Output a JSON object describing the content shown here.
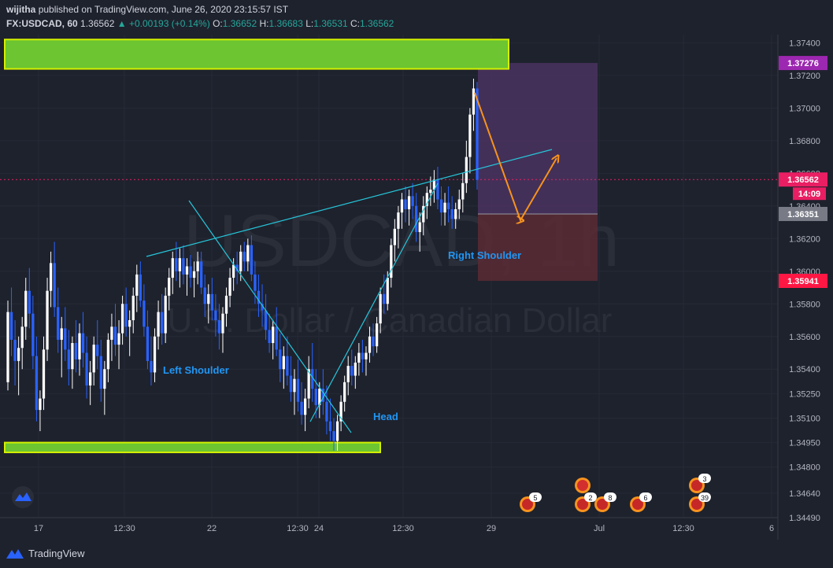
{
  "header": {
    "publisher": "wijitha",
    "published_text": "published on TradingView.com, June 26, 2020 23:15:57 IST",
    "symbol": "FX:USDCAD, 60",
    "last": "1.36562",
    "change": "▲ +0.00193 (+0.14%)",
    "o_label": "O:",
    "o": "1.36652",
    "h_label": "H:",
    "h": "1.36683",
    "l_label": "L:",
    "l": "1.36531",
    "c_label": "C:",
    "c": "1.36562"
  },
  "watermark": {
    "symbol": "USDCAD, 1h",
    "name": "U.S. Dollar / Canadian Dollar"
  },
  "annotations": {
    "left_shoulder": "Left Shoulder",
    "head": "Head",
    "right_shoulder": "Right Shoulder"
  },
  "price_labels": {
    "target_upper": "1.37276",
    "current": "1.36562",
    "countdown": "14:09",
    "entry": "1.36351",
    "stop": "1.35941"
  },
  "event_badges": [
    "5",
    "2",
    "8",
    "6",
    "3",
    "39"
  ],
  "footer": {
    "brand": "TradingView"
  },
  "colors": {
    "background": "#1e222d",
    "up_candle": "#ffffff",
    "down_candle": "#2962ff",
    "zone_fill": "#6cc531",
    "zone_border": "#d4f000",
    "trendline": "#26c6da",
    "arrow": "#f7931e",
    "label_text": "#2196f3",
    "target_box": "#4a3360",
    "stop_box": "#5b2a35",
    "target_label": "#9c27b0",
    "current_label": "#e91e63",
    "entry_label": "#787b86",
    "stop_label": "#ff1744"
  },
  "chart_data": {
    "type": "candlestick",
    "symbol": "FX:USDCAD",
    "interval": "60",
    "y_ticks": [
      "1.37400",
      "1.37200",
      "1.37000",
      "1.36800",
      "1.36600",
      "1.36400",
      "1.36200",
      "1.36000",
      "1.35800",
      "1.35600",
      "1.35400",
      "1.35250",
      "1.35100",
      "1.34950",
      "1.34800",
      "1.34640",
      "1.34490"
    ],
    "x_ticks": [
      "17",
      "12:30",
      "22",
      "12:30",
      "24",
      "12:30",
      "29",
      "Jul",
      "12:30",
      "6"
    ],
    "ylim": [
      1.3449,
      1.3745
    ],
    "supply_zone": [
      1.3724,
      1.3742
    ],
    "demand_zone": [
      1.3489,
      1.3495
    ],
    "neckline": [
      {
        "x": "19 12:00",
        "y": 1.3612
      },
      {
        "x": "26 18:00",
        "y": 1.3678
      }
    ],
    "head_line_down": [
      {
        "x": "19 00:00",
        "y": 1.3646
      },
      {
        "x": "23 20:00",
        "y": 1.3508
      }
    ],
    "head_line_up": [
      {
        "x": "23 14:00",
        "y": 1.35
      },
      {
        "x": "25 17:00",
        "y": 1.3652
      }
    ],
    "projection_path": [
      1.3718,
      1.3635,
      1.3672
    ],
    "position": {
      "target": 1.37276,
      "entry": 1.36351,
      "stop": 1.35941
    },
    "candles": [
      [
        1.3532,
        1.3582,
        1.3527,
        1.3575
      ],
      [
        1.3575,
        1.359,
        1.3548,
        1.3558
      ],
      [
        1.3558,
        1.357,
        1.353,
        1.3545
      ],
      [
        1.3545,
        1.356,
        1.3524,
        1.3553
      ],
      [
        1.3553,
        1.3572,
        1.354,
        1.3566
      ],
      [
        1.3566,
        1.3596,
        1.3558,
        1.3588
      ],
      [
        1.3588,
        1.3602,
        1.3565,
        1.3574
      ],
      [
        1.3574,
        1.3585,
        1.354,
        1.3548
      ],
      [
        1.3548,
        1.356,
        1.3508,
        1.3515
      ],
      [
        1.3515,
        1.3527,
        1.3502,
        1.3522
      ],
      [
        1.3522,
        1.356,
        1.3515,
        1.3552
      ],
      [
        1.3552,
        1.3596,
        1.3545,
        1.3588
      ],
      [
        1.3588,
        1.3612,
        1.3578,
        1.3605
      ],
      [
        1.3605,
        1.3618,
        1.3572,
        1.3578
      ],
      [
        1.3578,
        1.359,
        1.355,
        1.3558
      ],
      [
        1.3558,
        1.3572,
        1.3535,
        1.3565
      ],
      [
        1.3565,
        1.3578,
        1.3545,
        1.3552
      ],
      [
        1.3552,
        1.3564,
        1.353,
        1.354
      ],
      [
        1.354,
        1.356,
        1.3528,
        1.3556
      ],
      [
        1.3556,
        1.357,
        1.3538,
        1.3546
      ],
      [
        1.3546,
        1.3568,
        1.3536,
        1.3562
      ],
      [
        1.3562,
        1.3575,
        1.3541,
        1.355
      ],
      [
        1.355,
        1.356,
        1.3522,
        1.353
      ],
      [
        1.353,
        1.3545,
        1.3518,
        1.3538
      ],
      [
        1.3538,
        1.356,
        1.353,
        1.3555
      ],
      [
        1.3555,
        1.357,
        1.354,
        1.3548
      ],
      [
        1.3548,
        1.3558,
        1.352,
        1.3528
      ],
      [
        1.3528,
        1.3545,
        1.3512,
        1.354
      ],
      [
        1.354,
        1.3562,
        1.3532,
        1.3558
      ],
      [
        1.3558,
        1.3574,
        1.3545,
        1.3566
      ],
      [
        1.3566,
        1.358,
        1.3548,
        1.3555
      ],
      [
        1.3555,
        1.357,
        1.354,
        1.3562
      ],
      [
        1.3562,
        1.3585,
        1.3555,
        1.358
      ],
      [
        1.358,
        1.359,
        1.356,
        1.3566
      ],
      [
        1.3566,
        1.3576,
        1.3548,
        1.357
      ],
      [
        1.357,
        1.359,
        1.3562,
        1.3585
      ],
      [
        1.3585,
        1.3604,
        1.3575,
        1.3598
      ],
      [
        1.3598,
        1.3606,
        1.3578,
        1.3582
      ],
      [
        1.3582,
        1.3592,
        1.356,
        1.3566
      ],
      [
        1.3566,
        1.3576,
        1.354,
        1.3545
      ],
      [
        1.3545,
        1.356,
        1.353,
        1.3538
      ],
      [
        1.3538,
        1.3565,
        1.3532,
        1.356
      ],
      [
        1.356,
        1.3582,
        1.3552,
        1.3575
      ],
      [
        1.3575,
        1.3586,
        1.3555,
        1.3562
      ],
      [
        1.3562,
        1.359,
        1.3556,
        1.3585
      ],
      [
        1.3585,
        1.3602,
        1.3576,
        1.3596
      ],
      [
        1.3596,
        1.3612,
        1.3586,
        1.3608
      ],
      [
        1.3608,
        1.3618,
        1.3594,
        1.36
      ],
      [
        1.36,
        1.3614,
        1.359,
        1.3608
      ],
      [
        1.3608,
        1.3616,
        1.3592,
        1.3598
      ],
      [
        1.3598,
        1.3608,
        1.3585,
        1.3603
      ],
      [
        1.3603,
        1.361,
        1.359,
        1.3596
      ],
      [
        1.3596,
        1.3606,
        1.3584,
        1.36
      ],
      [
        1.36,
        1.3612,
        1.3592,
        1.3606
      ],
      [
        1.3606,
        1.3612,
        1.3586,
        1.359
      ],
      [
        1.359,
        1.3598,
        1.3572,
        1.358
      ],
      [
        1.358,
        1.3592,
        1.3568,
        1.3586
      ],
      [
        1.3586,
        1.3596,
        1.357,
        1.3576
      ],
      [
        1.3576,
        1.3586,
        1.356,
        1.357
      ],
      [
        1.357,
        1.358,
        1.3552,
        1.3562
      ],
      [
        1.3562,
        1.3578,
        1.355,
        1.3574
      ],
      [
        1.3574,
        1.359,
        1.3566,
        1.3585
      ],
      [
        1.3585,
        1.3602,
        1.3578,
        1.3596
      ],
      [
        1.3596,
        1.3608,
        1.3588,
        1.3604
      ],
      [
        1.3604,
        1.3612,
        1.3592,
        1.36
      ],
      [
        1.36,
        1.3616,
        1.3594,
        1.3612
      ],
      [
        1.3612,
        1.3618,
        1.36,
        1.3606
      ],
      [
        1.3606,
        1.362,
        1.36,
        1.3616
      ],
      [
        1.3616,
        1.3622,
        1.3594,
        1.3598
      ],
      [
        1.3598,
        1.3606,
        1.358,
        1.3588
      ],
      [
        1.3588,
        1.3598,
        1.3572,
        1.358
      ],
      [
        1.358,
        1.3592,
        1.3566,
        1.3576
      ],
      [
        1.3576,
        1.3586,
        1.3558,
        1.3564
      ],
      [
        1.3564,
        1.3574,
        1.355,
        1.3556
      ],
      [
        1.3556,
        1.357,
        1.3546,
        1.3566
      ],
      [
        1.3566,
        1.3578,
        1.3548,
        1.3552
      ],
      [
        1.3552,
        1.3562,
        1.3532,
        1.354
      ],
      [
        1.354,
        1.3554,
        1.3528,
        1.3548
      ],
      [
        1.3548,
        1.356,
        1.353,
        1.3536
      ],
      [
        1.3536,
        1.3548,
        1.352,
        1.3526
      ],
      [
        1.3526,
        1.354,
        1.3512,
        1.3534
      ],
      [
        1.3534,
        1.3546,
        1.3514,
        1.352
      ],
      [
        1.352,
        1.3532,
        1.3506,
        1.3512
      ],
      [
        1.3512,
        1.3528,
        1.3502,
        1.3522
      ],
      [
        1.3522,
        1.3548,
        1.3516,
        1.354
      ],
      [
        1.354,
        1.3556,
        1.352,
        1.3528
      ],
      [
        1.3528,
        1.354,
        1.351,
        1.3518
      ],
      [
        1.3518,
        1.3532,
        1.351,
        1.3528
      ],
      [
        1.3528,
        1.354,
        1.3512,
        1.352
      ],
      [
        1.352,
        1.353,
        1.35,
        1.3508
      ],
      [
        1.3508,
        1.3522,
        1.3496,
        1.3502
      ],
      [
        1.3502,
        1.351,
        1.349,
        1.3496
      ],
      [
        1.3496,
        1.3512,
        1.349,
        1.3508
      ],
      [
        1.3508,
        1.3524,
        1.3502,
        1.352
      ],
      [
        1.352,
        1.3536,
        1.3514,
        1.3532
      ],
      [
        1.3532,
        1.3548,
        1.3524,
        1.3542
      ],
      [
        1.3542,
        1.3552,
        1.353,
        1.3536
      ],
      [
        1.3536,
        1.3548,
        1.3528,
        1.3544
      ],
      [
        1.3544,
        1.3556,
        1.3536,
        1.355
      ],
      [
        1.355,
        1.3558,
        1.3538,
        1.3546
      ],
      [
        1.3546,
        1.3554,
        1.3536,
        1.355
      ],
      [
        1.355,
        1.3566,
        1.3544,
        1.356
      ],
      [
        1.356,
        1.3568,
        1.3548,
        1.3554
      ],
      [
        1.3554,
        1.3572,
        1.355,
        1.3568
      ],
      [
        1.3568,
        1.359,
        1.3562,
        1.3586
      ],
      [
        1.3586,
        1.3598,
        1.3574,
        1.358
      ],
      [
        1.358,
        1.36,
        1.3576,
        1.3596
      ],
      [
        1.3596,
        1.362,
        1.359,
        1.3616
      ],
      [
        1.3616,
        1.3632,
        1.3606,
        1.3626
      ],
      [
        1.3626,
        1.364,
        1.3614,
        1.3636
      ],
      [
        1.3636,
        1.3648,
        1.3626,
        1.3644
      ],
      [
        1.3644,
        1.3652,
        1.363,
        1.3638
      ],
      [
        1.3638,
        1.365,
        1.3628,
        1.3646
      ],
      [
        1.3646,
        1.3654,
        1.3632,
        1.364
      ],
      [
        1.364,
        1.3648,
        1.3618,
        1.3624
      ],
      [
        1.3624,
        1.3636,
        1.3612,
        1.363
      ],
      [
        1.363,
        1.3646,
        1.3622,
        1.364
      ],
      [
        1.364,
        1.3652,
        1.3632,
        1.3648
      ],
      [
        1.3648,
        1.3658,
        1.364,
        1.365
      ],
      [
        1.365,
        1.3662,
        1.3642,
        1.3656
      ],
      [
        1.3656,
        1.3664,
        1.3638,
        1.3644
      ],
      [
        1.3644,
        1.3652,
        1.3628,
        1.3636
      ],
      [
        1.3636,
        1.3648,
        1.3628,
        1.3642
      ],
      [
        1.3642,
        1.3652,
        1.363,
        1.3638
      ],
      [
        1.3638,
        1.3646,
        1.3626,
        1.3632
      ],
      [
        1.3632,
        1.3642,
        1.3626,
        1.3638
      ],
      [
        1.3638,
        1.365,
        1.3632,
        1.3644
      ],
      [
        1.3644,
        1.366,
        1.3636,
        1.3654
      ],
      [
        1.3654,
        1.368,
        1.3648,
        1.367
      ],
      [
        1.367,
        1.37,
        1.366,
        1.3696
      ],
      [
        1.3696,
        1.3718,
        1.3686,
        1.3712
      ],
      [
        1.3712,
        1.3716,
        1.365,
        1.3656
      ]
    ]
  }
}
